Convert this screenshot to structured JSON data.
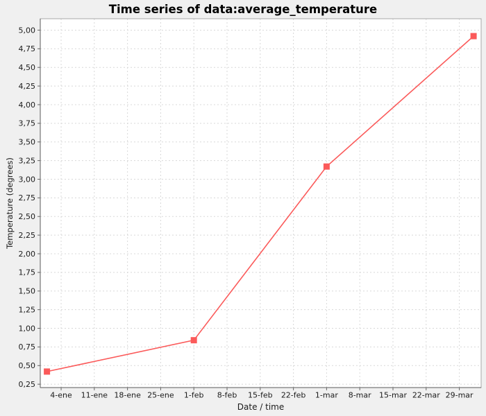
{
  "title": "Time series of data:average_temperature",
  "colors": {
    "page_bg": "#f0f0f0",
    "plot_bg": "#ffffff",
    "grid": "#d8d8d8",
    "outline": "#a8a8a8",
    "axis_line": "#5a5a5a",
    "tick_mark": "#666666",
    "series": "#fb5a5a",
    "text": "#1a1a1a"
  },
  "chart_data": {
    "type": "line",
    "title": "Time series of data:average_temperature",
    "xlabel": "Date / time",
    "ylabel": "Temperature (degrees)",
    "legend": "none",
    "grid": "dashed",
    "x_unit": "days since 1-ene",
    "x_tick_labels": [
      "4-ene",
      "11-ene",
      "18-ene",
      "25-ene",
      "1-feb",
      "8-feb",
      "15-feb",
      "22-feb",
      "1-mar",
      "8-mar",
      "15-mar",
      "22-mar",
      "29-mar"
    ],
    "x_tick_days": [
      3,
      10,
      17,
      24,
      31,
      38,
      45,
      52,
      59,
      66,
      73,
      80,
      87
    ],
    "xlim_days": [
      -1.4,
      91.6
    ],
    "y_tick_labels": [
      "0,25",
      "0,50",
      "0,75",
      "1,00",
      "1,25",
      "1,50",
      "1,75",
      "2,00",
      "2,25",
      "2,50",
      "2,75",
      "3,00",
      "3,25",
      "3,50",
      "3,75",
      "4,00",
      "4,25",
      "4,50",
      "4,75",
      "5,00"
    ],
    "y_tick_values": [
      0.25,
      0.5,
      0.75,
      1.0,
      1.25,
      1.5,
      1.75,
      2.0,
      2.25,
      2.5,
      2.75,
      3.0,
      3.25,
      3.5,
      3.75,
      4.0,
      4.25,
      4.5,
      4.75,
      5.0
    ],
    "ylim": [
      0.205,
      5.153
    ],
    "series": [
      {
        "name": "average_temperature",
        "color": "#fb5a5a",
        "marker": "square",
        "points": [
          {
            "day": 0,
            "value": 0.42
          },
          {
            "day": 31,
            "value": 0.84
          },
          {
            "day": 59,
            "value": 3.17
          },
          {
            "day": 90,
            "value": 4.92
          }
        ]
      }
    ]
  }
}
